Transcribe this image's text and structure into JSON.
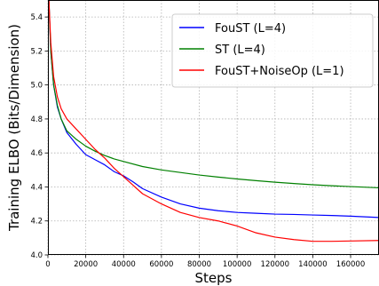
{
  "chart_data": {
    "type": "line",
    "title": "",
    "xlabel": "Steps",
    "ylabel": "Training ELBO (Bits/Dimension)",
    "xlim": [
      0,
      175000
    ],
    "ylim": [
      4.0,
      5.5
    ],
    "xticks": [
      0,
      20000,
      40000,
      60000,
      80000,
      100000,
      120000,
      140000,
      160000
    ],
    "yticks": [
      4.0,
      4.2,
      4.4,
      4.6,
      4.8,
      5.0,
      5.2,
      5.4
    ],
    "xtick_labels": [
      "0",
      "20000",
      "40000",
      "60000",
      "80000",
      "100000",
      "120000",
      "140000",
      "160000"
    ],
    "ytick_labels": [
      "4.0",
      "4.2",
      "4.4",
      "4.6",
      "4.8",
      "5.0",
      "5.2",
      "5.4"
    ],
    "grid": true,
    "legend_position": "top-right",
    "series": [
      {
        "name": "FouST (L=4)",
        "color": "#0000ff",
        "x": [
          500,
          1500,
          3000,
          5000,
          7000,
          10000,
          15000,
          20000,
          25000,
          30000,
          35000,
          40000,
          45000,
          50000,
          60000,
          70000,
          80000,
          90000,
          100000,
          110000,
          120000,
          130000,
          140000,
          150000,
          160000,
          175000
        ],
        "y": [
          5.5,
          5.2,
          5.0,
          4.87,
          4.8,
          4.72,
          4.65,
          4.59,
          4.56,
          4.53,
          4.49,
          4.465,
          4.43,
          4.39,
          4.34,
          4.3,
          4.275,
          4.26,
          4.25,
          4.245,
          4.24,
          4.238,
          4.235,
          4.232,
          4.228,
          4.22
        ]
      },
      {
        "name": "ST (L=4)",
        "color": "#008000",
        "x": [
          500,
          1500,
          3000,
          5000,
          7000,
          10000,
          15000,
          20000,
          25000,
          30000,
          35000,
          40000,
          50000,
          60000,
          70000,
          80000,
          90000,
          100000,
          110000,
          120000,
          130000,
          140000,
          150000,
          160000,
          175000
        ],
        "y": [
          5.5,
          5.2,
          5.0,
          4.88,
          4.8,
          4.73,
          4.68,
          4.64,
          4.61,
          4.585,
          4.565,
          4.55,
          4.52,
          4.5,
          4.485,
          4.47,
          4.458,
          4.447,
          4.437,
          4.428,
          4.42,
          4.413,
          4.407,
          4.402,
          4.395
        ]
      },
      {
        "name": "FouST+NoiseOp (L=1)",
        "color": "#ff0000",
        "x": [
          500,
          1500,
          3000,
          5000,
          7000,
          10000,
          15000,
          20000,
          25000,
          30000,
          35000,
          40000,
          45000,
          50000,
          60000,
          70000,
          80000,
          90000,
          100000,
          110000,
          120000,
          130000,
          140000,
          150000,
          160000,
          175000
        ],
        "y": [
          5.5,
          5.25,
          5.05,
          4.93,
          4.86,
          4.8,
          4.74,
          4.68,
          4.62,
          4.57,
          4.51,
          4.46,
          4.41,
          4.36,
          4.3,
          4.25,
          4.22,
          4.2,
          4.17,
          4.13,
          4.105,
          4.09,
          4.08,
          4.08,
          4.082,
          4.085
        ]
      }
    ]
  }
}
